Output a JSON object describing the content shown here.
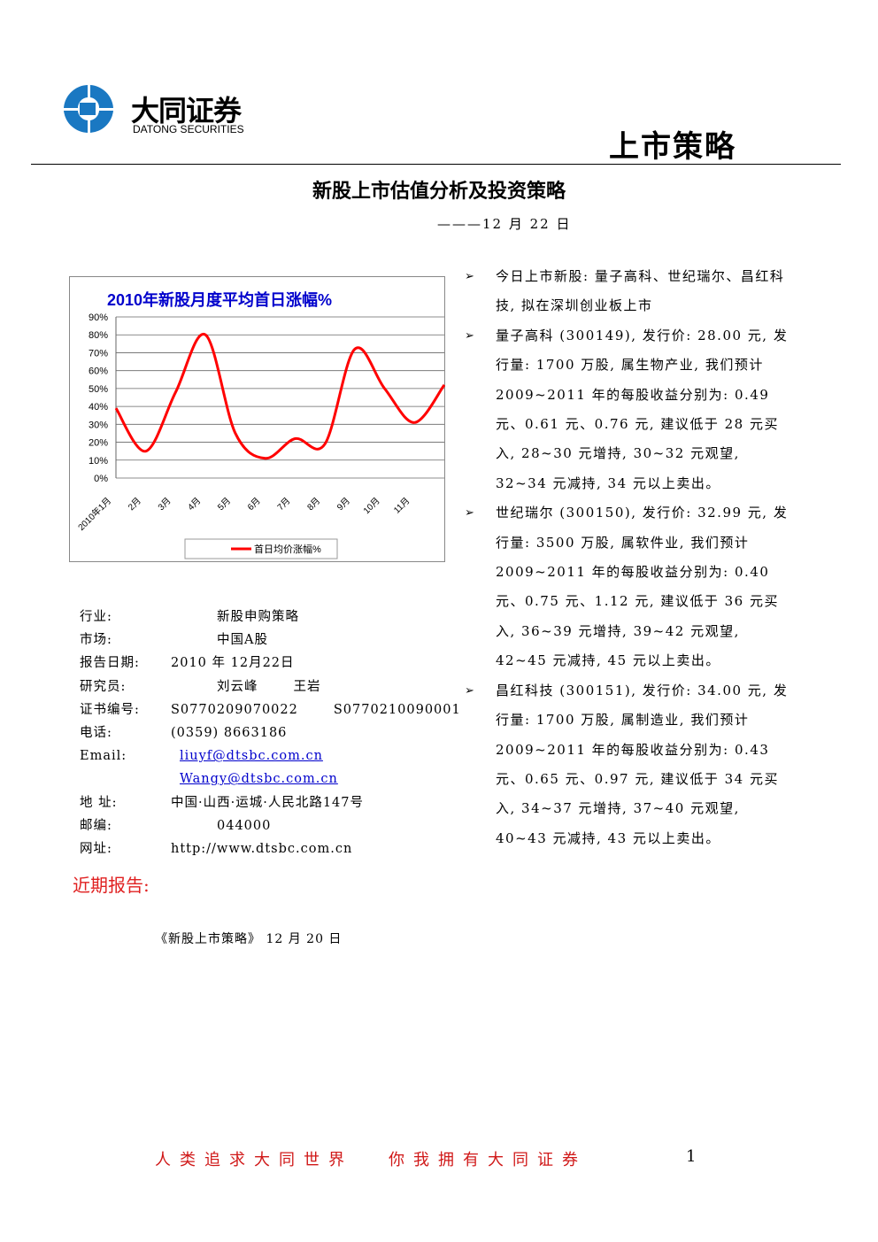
{
  "header": {
    "company": "大同证券",
    "company_en": "DATONG SECURITIES",
    "report_kind": "上市策略"
  },
  "title": "新股上市估值分析及投资策略",
  "subtitle": "———12 月 22 日",
  "chart_data": {
    "type": "line",
    "title": "2010年新股月度平均首日涨幅%",
    "categories": [
      "2010年1月",
      "2月",
      "3月",
      "4月",
      "5月",
      "6月",
      "7月",
      "8月",
      "9月",
      "10月",
      "11月",
      null
    ],
    "series": [
      {
        "name": "首日均价涨幅%",
        "color": "#ff0000",
        "values": [
          39,
          15,
          48,
          80,
          25,
          11,
          22,
          19,
          72,
          50,
          31,
          52
        ]
      }
    ],
    "ylim": [
      0,
      90
    ],
    "yticks": [
      {
        "value": 0,
        "label": "0%"
      },
      {
        "value": 10,
        "label": "10%"
      },
      {
        "value": 20,
        "label": "20%"
      },
      {
        "value": 30,
        "label": "30%"
      },
      {
        "value": 40,
        "label": "40%"
      },
      {
        "value": 50,
        "label": "50%"
      },
      {
        "value": 60,
        "label": "60%"
      },
      {
        "value": 70,
        "label": "70%"
      },
      {
        "value": 80,
        "label": "80%"
      },
      {
        "value": 90,
        "label": "90%"
      }
    ],
    "grid": true,
    "legend": "bottom"
  },
  "info": {
    "rows": [
      {
        "label": "行业:",
        "values": [
          "新股申购策略"
        ]
      },
      {
        "label": "市场:",
        "values": [
          "中国A股"
        ]
      },
      {
        "label": "报告日期:",
        "values": [
          "2010 年 12月22日"
        ]
      },
      {
        "label": "研究员:",
        "values": [
          "刘云峰",
          "王岩"
        ]
      },
      {
        "label": "证书编号:",
        "values": [
          "S0770209070022",
          "S0770210090001"
        ]
      },
      {
        "label": "电话:",
        "values": [
          "(0359) 8663186"
        ]
      },
      {
        "label": "Email:",
        "values": [
          "liuyf@dtsbc.com.cn",
          "Wangy@dtsbc.com.cn"
        ]
      },
      {
        "label": "地 址:",
        "values": [
          "中国·山西·运城·人民北路147号"
        ]
      },
      {
        "label": "邮编:",
        "values": [
          "044000"
        ]
      },
      {
        "label": "网址:",
        "values": [
          "http://www.dtsbc.com.cn"
        ]
      }
    ]
  },
  "bullets": [
    "今日上市新股: 量子高科、世纪瑞尔、昌红科技, 拟在深圳创业板上市",
    "量子高科 (300149), 发行价: 28.00 元, 发行量: 1700 万股, 属生物产业, 我们预计 2009~2011 年的每股收益分别为: 0.49 元、0.61 元、0.76 元, 建议低于 28 元买入, 28~30 元增持, 30~32 元观望, 32~34 元减持, 34 元以上卖出。",
    "世纪瑞尔 (300150), 发行价: 32.99 元, 发行量: 3500 万股, 属软件业, 我们预计 2009~2011 年的每股收益分别为: 0.40 元、0.75 元、1.12 元, 建议低于 36 元买入, 36~39 元增持, 39~42 元观望, 42~45 元减持, 45 元以上卖出。",
    "昌红科技 (300151), 发行价: 34.00 元, 发行量: 1700 万股, 属制造业, 我们预计 2009~2011 年的每股收益分别为: 0.43 元、0.65 元、0.97 元, 建议低于 34 元买入, 34~37 元增持, 37~40 元观望, 40~43 元减持, 43 元以上卖出。"
  ],
  "recent": {
    "heading": "近期报告:",
    "items": [
      "《新股上市策略》 12 月 20 日"
    ]
  },
  "footer": {
    "slogans": [
      "人类追求大同世界",
      "你我拥有大同证券"
    ],
    "page": "1"
  }
}
